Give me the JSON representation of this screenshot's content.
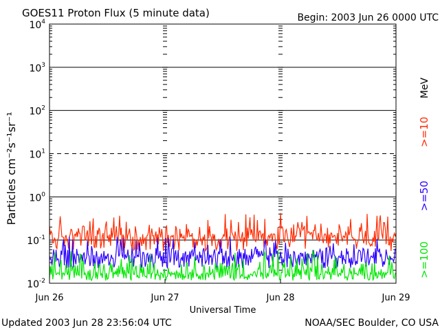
{
  "chart_data": {
    "type": "line",
    "title": "GOES11 Proton Flux (5 minute data)",
    "begin_label": "Begin: 2003 Jun 26 0000 UTC",
    "xlabel": "Universal Time",
    "ylabel": "Particles cm⁻²s⁻¹sr⁻¹",
    "y_scale": "log",
    "ylim": [
      0.01,
      10000
    ],
    "y_ticks": [
      {
        "base": "10",
        "exp": "-2"
      },
      {
        "base": "10",
        "exp": "-1"
      },
      {
        "base": "10",
        "exp": "0"
      },
      {
        "base": "10",
        "exp": "1"
      },
      {
        "base": "10",
        "exp": "2"
      },
      {
        "base": "10",
        "exp": "3"
      },
      {
        "base": "10",
        "exp": "4"
      }
    ],
    "x_ticks": [
      "Jun 26",
      "Jun 27",
      "Jun 28",
      "Jun 29"
    ],
    "xlim": [
      "2003-06-26",
      "2003-06-29"
    ],
    "reference_lines": [
      {
        "value": 10,
        "style": "dashed"
      }
    ],
    "energy_unit": "MeV",
    "series": [
      {
        "name": ">=10",
        "color": "#ff2a00",
        "typical": 0.1,
        "range": [
          0.05,
          0.45
        ]
      },
      {
        "name": ">=50",
        "color": "#2a00ff",
        "typical": 0.035,
        "range": [
          0.02,
          0.12
        ]
      },
      {
        "name": ">=100",
        "color": "#00e600",
        "typical": 0.015,
        "range": [
          0.011,
          0.06
        ]
      }
    ],
    "footer_left": "Updated 2003 Jun 28 23:56:04 UTC",
    "footer_right": "NOAA/SEC Boulder, CO USA"
  }
}
